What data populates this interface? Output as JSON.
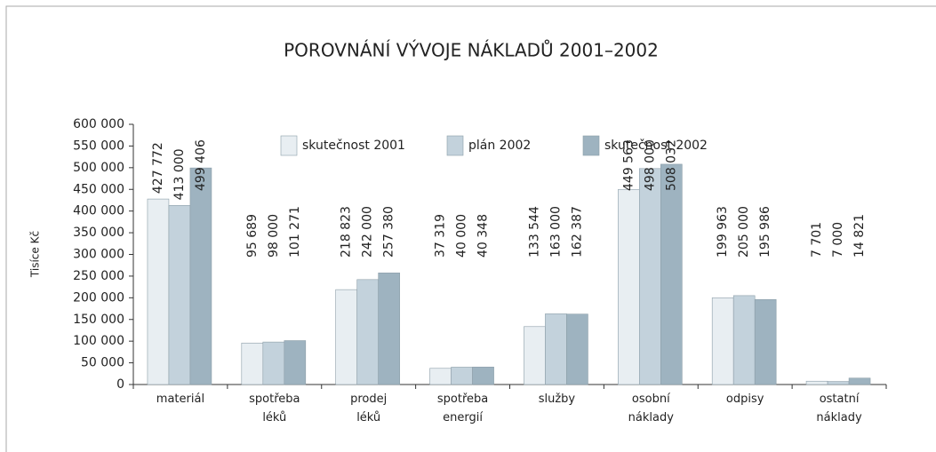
{
  "chart_data": {
    "type": "bar",
    "title": "POROVNÁNÍ VÝVOJE NÁKLADŮ 2001–2002",
    "y_label": "Tisíce Kč",
    "categories": [
      [
        "materiál"
      ],
      [
        "spotřeba",
        "léků"
      ],
      [
        "prodej",
        "léků"
      ],
      [
        "spotřeba",
        "energií"
      ],
      [
        "služby"
      ],
      [
        "osobní",
        "náklady"
      ],
      [
        "odpisy"
      ],
      [
        "ostatní",
        "náklady"
      ]
    ],
    "series": [
      {
        "name": "skutečnost 2001",
        "color": "#e8eef2",
        "values": [
          427772,
          95689,
          218823,
          37319,
          133544,
          449563,
          199963,
          7701
        ],
        "value_labels": [
          "427 772",
          "95 689",
          "218 823",
          "37 319",
          "133 544",
          "449 563",
          "199 963",
          "7 701"
        ]
      },
      {
        "name": "plán 2002",
        "color": "#c3d2dc",
        "values": [
          413000,
          98000,
          242000,
          40000,
          163000,
          498000,
          205000,
          7000
        ],
        "value_labels": [
          "413 000",
          "98 000",
          "242 000",
          "40 000",
          "163 000",
          "498 000",
          "205 000",
          "7 000"
        ]
      },
      {
        "name": "skutečnost 2002",
        "color": "#9eb3c0",
        "values": [
          499406,
          101271,
          257380,
          40348,
          162387,
          508032,
          195986,
          14821
        ],
        "value_labels": [
          "499 406",
          "101 271",
          "257 380",
          "40 348",
          "162 387",
          "508 032",
          "195 986",
          "14 821"
        ]
      }
    ],
    "ylim": [
      0,
      600000
    ],
    "yticks": [
      0,
      {
        "value": 50000,
        "label": "50 000"
      },
      {
        "value": 100000,
        "label": "100 000"
      },
      {
        "value": 150000,
        "label": "150 000"
      },
      {
        "value": 200000,
        "label": "200 000"
      },
      {
        "value": 250000,
        "label": "250 000"
      },
      {
        "value": 300000,
        "label": "300 000"
      },
      {
        "value": 350000,
        "label": "350 000"
      },
      {
        "value": 400000,
        "label": "400 000"
      },
      {
        "value": 450000,
        "label": "450 000"
      },
      {
        "value": 500000,
        "label": "500 000"
      },
      {
        "value": 550000,
        "label": "550 000"
      },
      {
        "value": 600000,
        "label": "600 000"
      }
    ],
    "legend": "top"
  }
}
